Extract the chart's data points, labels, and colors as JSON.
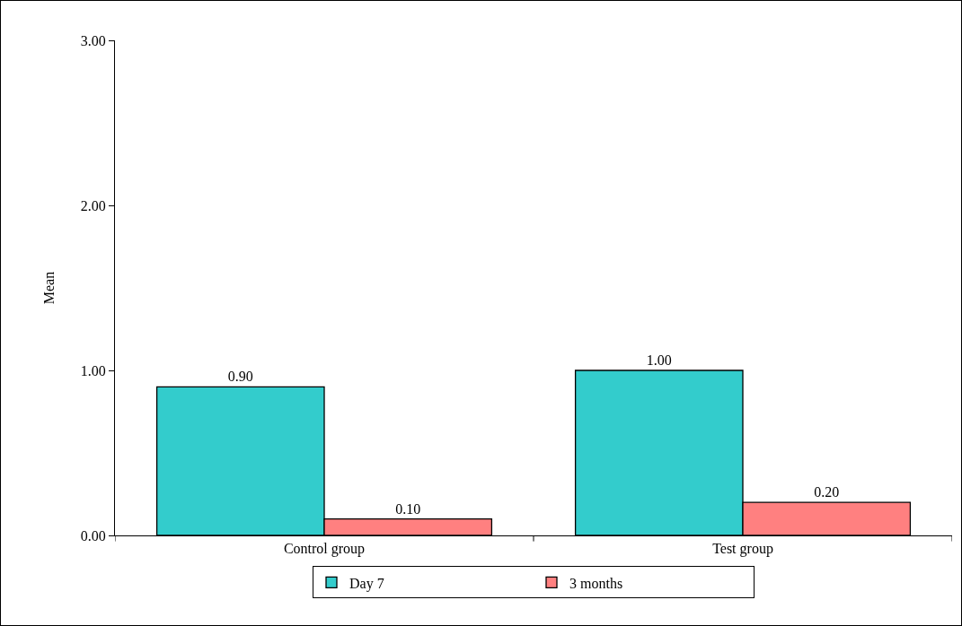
{
  "chart_data": {
    "type": "bar",
    "ylabel": "Mean",
    "categories": [
      "Control group",
      "Test group"
    ],
    "series": [
      {
        "name": "Day 7",
        "color": "#33cccc",
        "values": [
          0.9,
          1.0
        ],
        "value_labels": [
          "0.90",
          "1.00"
        ]
      },
      {
        "name": "3 months",
        "color": "#ff8080",
        "values": [
          0.1,
          0.2
        ],
        "value_labels": [
          "0.10",
          "0.20"
        ]
      }
    ],
    "ylim": [
      0,
      3
    ],
    "yticks": [
      {
        "value": 0,
        "label": "0.00"
      },
      {
        "value": 1,
        "label": "1.00"
      },
      {
        "value": 2,
        "label": "2.00"
      },
      {
        "value": 3,
        "label": "3.00"
      }
    ],
    "grid": false,
    "legend": "bottom"
  }
}
